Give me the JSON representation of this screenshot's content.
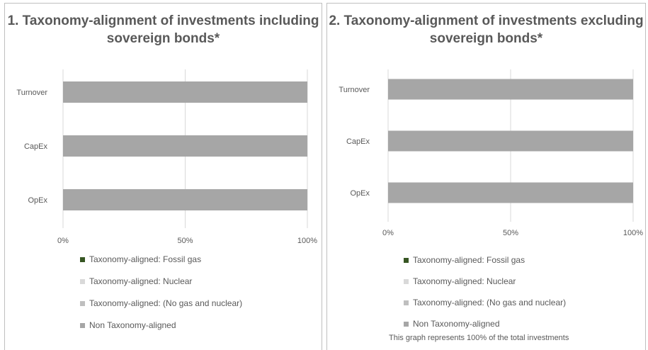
{
  "chart_data": [
    {
      "type": "bar",
      "orientation": "horizontal",
      "stacked": true,
      "title": "1. Taxonomy-alignment of investments including sovereign bonds*",
      "categories": [
        "Turnover",
        "CapEx",
        "OpEx"
      ],
      "series": [
        {
          "name": "Taxonomy-aligned: Fossil gas",
          "color": "#375623",
          "values": [
            0,
            0,
            0
          ]
        },
        {
          "name": "Taxonomy-aligned: Nuclear",
          "color": "#d9d9d9",
          "values": [
            0,
            0,
            0
          ]
        },
        {
          "name": "Taxonomy-aligned: (No gas and nuclear)",
          "color": "#bfbfbf",
          "values": [
            0,
            0,
            0
          ]
        },
        {
          "name": "Non Taxonomy-aligned",
          "color": "#a6a6a6",
          "values": [
            100,
            100,
            100
          ]
        }
      ],
      "xlim": [
        0,
        100
      ],
      "x_ticks": [
        "0%",
        "50%",
        "100%"
      ],
      "grid": true,
      "legend": "bottom"
    },
    {
      "type": "bar",
      "orientation": "horizontal",
      "stacked": true,
      "title": "2. Taxonomy-alignment of investments excluding sovereign bonds*",
      "categories": [
        "Turnover",
        "CapEx",
        "OpEx"
      ],
      "series": [
        {
          "name": "Taxonomy-aligned: Fossil gas",
          "color": "#375623",
          "values": [
            0,
            0,
            0
          ]
        },
        {
          "name": "Taxonomy-aligned: Nuclear",
          "color": "#d9d9d9",
          "values": [
            0,
            0,
            0
          ]
        },
        {
          "name": "Taxonomy-aligned: (No gas and nuclear)",
          "color": "#bfbfbf",
          "values": [
            0,
            0,
            0
          ]
        },
        {
          "name": "Non Taxonomy-aligned",
          "color": "#a6a6a6",
          "values": [
            100,
            100,
            100
          ]
        }
      ],
      "xlim": [
        0,
        100
      ],
      "x_ticks": [
        "0%",
        "50%",
        "100%"
      ],
      "grid": true,
      "legend": "bottom",
      "footnote": "This graph represents 100% of the total investments"
    }
  ]
}
